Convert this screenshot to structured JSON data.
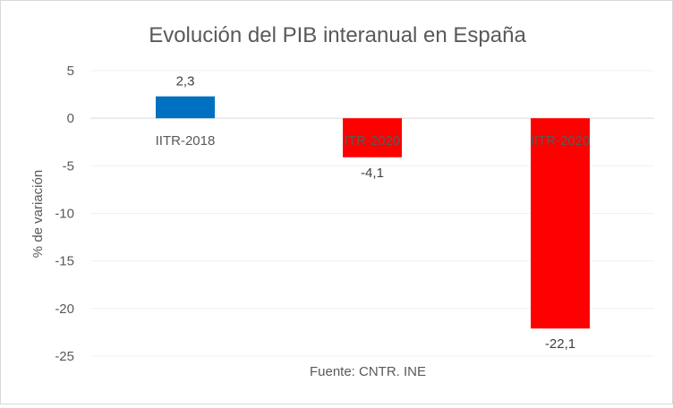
{
  "chart_data": {
    "type": "bar",
    "title": "Evolución del PIB interanual en España",
    "xlabel": "Fuente: CNTR. INE",
    "ylabel": "% de variación",
    "categories": [
      "IITR-2018",
      "ITR-2020",
      "IITR-2020"
    ],
    "values": [
      2.3,
      -4.1,
      -22.1
    ],
    "data_labels": [
      "2,3",
      "-4,1",
      "-22,1"
    ],
    "colors": [
      "#0070C0",
      "#FF0000",
      "#FF0000"
    ],
    "ylim": [
      -25,
      5
    ],
    "yticks": [
      5,
      0,
      -5,
      -10,
      -15,
      -20,
      -25
    ],
    "grid": true
  }
}
